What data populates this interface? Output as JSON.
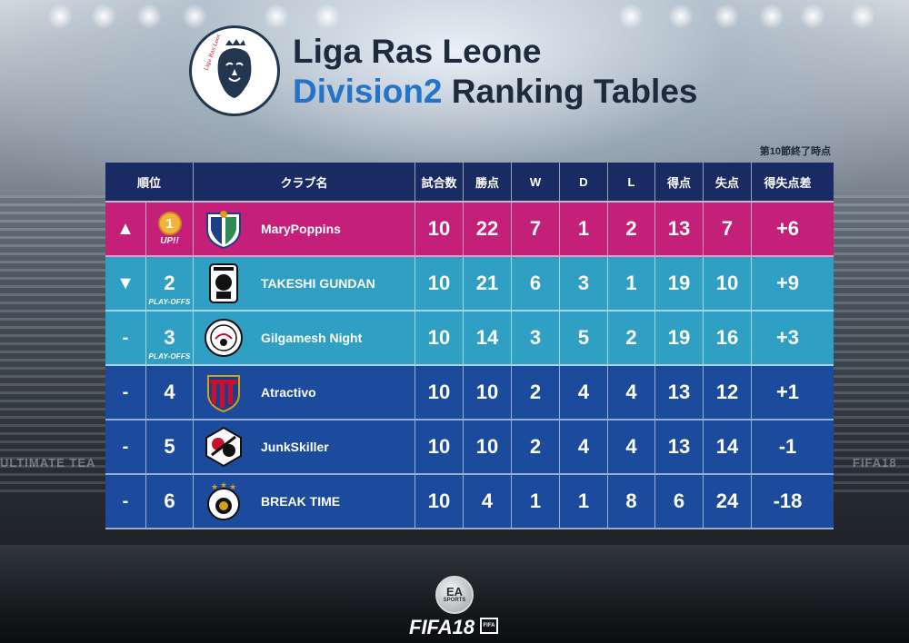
{
  "header": {
    "title_line1": "Liga Ras Leone",
    "title_line2_accent": "Division2",
    "title_line2_rest": "Ranking Tables",
    "note": "第10節終了時点"
  },
  "table": {
    "columns": [
      "順位",
      "クラブ名",
      "試合数",
      "勝点",
      "W",
      "D",
      "L",
      "得点",
      "失点",
      "得失点差"
    ],
    "rows": [
      {
        "trend": "▲",
        "position": "1",
        "badge": "UP!!",
        "club": "MaryPoppins",
        "played": "10",
        "points": "22",
        "w": "7",
        "d": "1",
        "l": "2",
        "gf": "13",
        "ga": "7",
        "diff": "+6",
        "color": "#c41f79",
        "emblem": "shield-blue-green"
      },
      {
        "trend": "▼",
        "position": "2",
        "badge": "PLAY-OFFS",
        "club": "TAKESHI GUNDAN",
        "played": "10",
        "points": "21",
        "w": "6",
        "d": "3",
        "l": "1",
        "gf": "19",
        "ga": "10",
        "diff": "+9",
        "color": "#2f9fc4",
        "emblem": "portrait-badge"
      },
      {
        "trend": "-",
        "position": "3",
        "badge": "PLAY-OFFS",
        "club": "Gilgamesh Night",
        "played": "10",
        "points": "14",
        "w": "3",
        "d": "5",
        "l": "2",
        "gf": "19",
        "ga": "16",
        "diff": "+3",
        "color": "#2f9fc4",
        "emblem": "round-badge"
      },
      {
        "trend": "-",
        "position": "4",
        "badge": "",
        "club": "Atractivo",
        "played": "10",
        "points": "10",
        "w": "2",
        "d": "4",
        "l": "4",
        "gf": "13",
        "ga": "12",
        "diff": "+1",
        "color": "#1c4a9c",
        "emblem": "shield-red-blue"
      },
      {
        "trend": "-",
        "position": "5",
        "badge": "",
        "club": "JunkSkiller",
        "played": "10",
        "points": "10",
        "w": "2",
        "d": "4",
        "l": "4",
        "gf": "13",
        "ga": "14",
        "diff": "-1",
        "color": "#1c4a9c",
        "emblem": "hexagon-red-black"
      },
      {
        "trend": "-",
        "position": "6",
        "badge": "",
        "club": "BREAK TIME",
        "played": "10",
        "points": "4",
        "w": "1",
        "d": "1",
        "l": "8",
        "gf": "6",
        "ga": "24",
        "diff": "-18",
        "color": "#1c4a9c",
        "emblem": "round-stars"
      }
    ]
  },
  "footer": {
    "ea_text": "EA",
    "ea_sports": "SPORTS",
    "fifa_text": "FIFA",
    "fifa_num": "18",
    "fifa_badge": "FIFA"
  },
  "background": {
    "stand_text_left": "ULTIMATE TEA",
    "stand_text_right": "FIFA18"
  }
}
